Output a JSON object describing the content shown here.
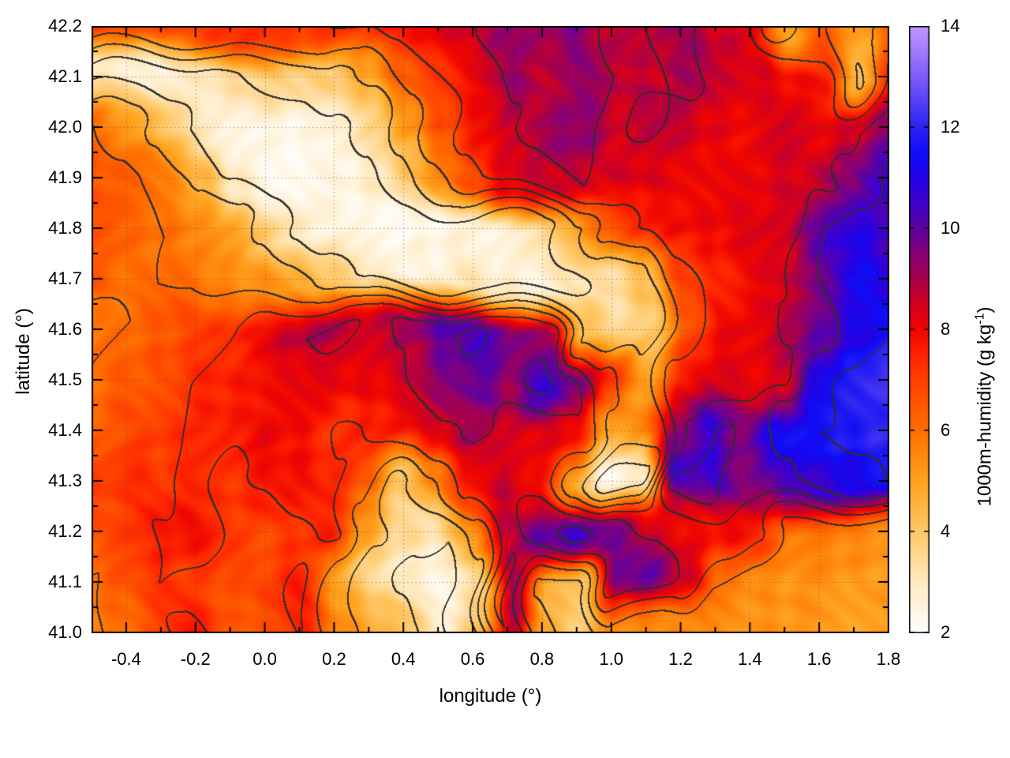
{
  "chart_data": {
    "type": "heatmap",
    "title": "",
    "xlabel": "longitude (°)",
    "ylabel": "latitude (°)",
    "grid": "dotted gridlines at major ticks",
    "legend_position": "right colorbar",
    "x_axis": {
      "range": [
        -0.5,
        1.8
      ],
      "major_tick_step": 0.2,
      "minor_tick_step": 0.1,
      "tick_values": [
        -0.4,
        -0.2,
        0.0,
        0.2,
        0.4,
        0.6,
        0.8,
        1.0,
        1.2,
        1.4,
        1.6,
        1.8
      ],
      "tick_labels": [
        "-0.4",
        "-0.2",
        "0.0",
        "0.2",
        "0.4",
        "0.6",
        "0.8",
        "1.0",
        "1.2",
        "1.4",
        "1.6",
        "1.8"
      ]
    },
    "y_axis": {
      "range": [
        41.0,
        42.2
      ],
      "major_tick_step": 0.1,
      "minor_tick_step": 0.05,
      "tick_values": [
        41.0,
        41.1,
        41.2,
        41.3,
        41.4,
        41.5,
        41.6,
        41.7,
        41.8,
        41.9,
        42.0,
        42.1,
        42.2
      ],
      "tick_labels": [
        "41.0",
        "41.1",
        "41.2",
        "41.3",
        "41.4",
        "41.5",
        "41.6",
        "41.7",
        "41.8",
        "41.9",
        "42.0",
        "42.1",
        "42.2"
      ]
    },
    "colorbar": {
      "label_prefix": "1000m-humidity (g kg",
      "label_sup": "-1",
      "label_suffix": ")",
      "range": [
        2,
        14
      ],
      "tick_values": [
        2,
        4,
        6,
        8,
        10,
        12,
        14
      ],
      "tick_labels": [
        "2",
        "4",
        "6",
        "8",
        "10",
        "12",
        "14"
      ]
    },
    "palette_stops": [
      [
        2,
        "#ffffff"
      ],
      [
        3,
        "#ffeac2"
      ],
      [
        4,
        "#ffc868"
      ],
      [
        5,
        "#ffa21e"
      ],
      [
        6,
        "#ff7000"
      ],
      [
        7,
        "#ff4000"
      ],
      [
        7.5,
        "#ff2400"
      ],
      [
        8,
        "#f00600"
      ],
      [
        8.5,
        "#d4001e"
      ],
      [
        9,
        "#a8004a"
      ],
      [
        9.5,
        "#860078"
      ],
      [
        10,
        "#5e00a0"
      ],
      [
        10.5,
        "#3f00cc"
      ],
      [
        11,
        "#2202e6"
      ],
      [
        11.5,
        "#0f0ef8"
      ],
      [
        12,
        "#2d24f2"
      ],
      [
        13,
        "#7e5cf9"
      ],
      [
        14,
        "#c498fd"
      ]
    ],
    "contours": {
      "color": "#323232",
      "levels": [
        3.2,
        4.6,
        6.0,
        7.4,
        8.8,
        10.2,
        11.6
      ],
      "note": "black terrain-style contour lines overlaid on the humidity shading"
    },
    "heatmap_grid": {
      "units": "g/kg",
      "lon_min": -0.5,
      "lon_max": 1.8,
      "lon_step": 0.1,
      "lat_min": 41.0,
      "lat_max": 42.2,
      "lat_step": 0.1,
      "cols": 24,
      "rows": 13,
      "row_order": "north (lat 42.2) to south (lat 41.0)",
      "values_g_per_kg": [
        [
          7.4,
          7.2,
          7.0,
          7.0,
          7.2,
          7.4,
          7.2,
          7.4,
          7.6,
          8.0,
          8.2,
          8.6,
          9.2,
          9.0,
          9.6,
          8.6,
          8.8,
          9.4,
          8.6,
          8.2,
          5.0,
          6.5,
          4.8,
          6.5
        ],
        [
          3.0,
          2.8,
          2.6,
          2.8,
          3.2,
          3.6,
          3.4,
          4.0,
          5.0,
          6.4,
          7.4,
          8.0,
          9.2,
          8.8,
          9.2,
          8.8,
          8.6,
          9.0,
          8.6,
          8.4,
          8.0,
          7.8,
          4.5,
          7.5
        ],
        [
          6.0,
          5.2,
          4.2,
          3.2,
          2.6,
          2.3,
          2.4,
          2.8,
          3.6,
          5.4,
          6.8,
          7.8,
          8.6,
          9.2,
          9.4,
          8.6,
          9.0,
          8.6,
          8.2,
          8.0,
          8.4,
          8.2,
          8.6,
          9.2
        ],
        [
          6.5,
          6.2,
          5.8,
          4.5,
          3.0,
          2.4,
          2.3,
          2.4,
          3.0,
          4.2,
          5.6,
          7.0,
          8.2,
          8.4,
          8.8,
          8.4,
          8.4,
          8.2,
          8.0,
          8.0,
          8.4,
          8.6,
          9.4,
          10.6
        ],
        [
          6.8,
          6.2,
          6.0,
          5.6,
          5.0,
          4.0,
          3.0,
          2.4,
          2.4,
          2.3,
          2.4,
          2.6,
          2.6,
          3.0,
          4.5,
          6.5,
          7.5,
          8.0,
          8.0,
          8.2,
          8.5,
          10.2,
          11.0,
          10.5
        ],
        [
          6.6,
          6.1,
          6.0,
          6.0,
          5.6,
          5.4,
          5.0,
          4.2,
          3.0,
          2.6,
          2.6,
          3.0,
          2.8,
          2.6,
          3.0,
          3.4,
          4.4,
          7.0,
          7.6,
          8.0,
          8.6,
          10.0,
          11.4,
          10.4
        ],
        [
          5.6,
          6.0,
          6.4,
          6.9,
          7.4,
          8.2,
          8.8,
          9.0,
          8.6,
          9.0,
          10.0,
          10.4,
          9.4,
          9.4,
          4.5,
          3.4,
          4.0,
          6.5,
          8.0,
          8.2,
          9.0,
          10.0,
          11.0,
          11.5
        ],
        [
          6.0,
          6.4,
          6.8,
          7.4,
          7.6,
          8.0,
          8.0,
          8.2,
          8.2,
          8.6,
          9.6,
          10.0,
          9.2,
          10.8,
          9.6,
          7.0,
          4.8,
          7.6,
          8.2,
          8.2,
          8.4,
          11.0,
          12.0,
          12.4
        ],
        [
          6.4,
          6.8,
          7.2,
          7.6,
          7.6,
          8.0,
          7.8,
          7.2,
          7.6,
          8.0,
          8.6,
          9.0,
          8.6,
          8.2,
          8.0,
          5.0,
          5.5,
          9.0,
          10.5,
          9.5,
          11.4,
          11.6,
          11.8,
          12.0
        ],
        [
          7.0,
          7.4,
          7.0,
          7.6,
          7.2,
          7.6,
          8.0,
          7.6,
          6.6,
          4.2,
          5.6,
          7.6,
          8.6,
          8.0,
          5.0,
          2.4,
          2.8,
          10.4,
          10.6,
          9.4,
          10.0,
          10.6,
          11.0,
          11.6
        ],
        [
          6.6,
          7.0,
          7.6,
          8.0,
          7.2,
          6.8,
          7.2,
          7.6,
          5.5,
          3.6,
          3.2,
          5.4,
          8.6,
          10.0,
          10.6,
          9.6,
          8.4,
          8.0,
          8.0,
          7.6,
          5.8,
          5.6,
          5.5,
          5.5
        ],
        [
          6.0,
          6.6,
          7.4,
          7.0,
          6.6,
          7.0,
          7.6,
          5.0,
          3.6,
          2.8,
          2.5,
          3.6,
          9.0,
          4.5,
          4.0,
          9.6,
          10.0,
          8.6,
          6.0,
          5.4,
          5.3,
          5.3,
          5.2,
          5.2
        ],
        [
          5.8,
          6.2,
          7.2,
          7.8,
          6.4,
          6.6,
          7.4,
          5.5,
          4.5,
          4.0,
          2.8,
          4.2,
          8.8,
          5.0,
          3.6,
          5.6,
          5.5,
          5.4,
          5.4,
          5.3,
          5.2,
          5.2,
          5.1,
          5.0
        ]
      ]
    }
  }
}
